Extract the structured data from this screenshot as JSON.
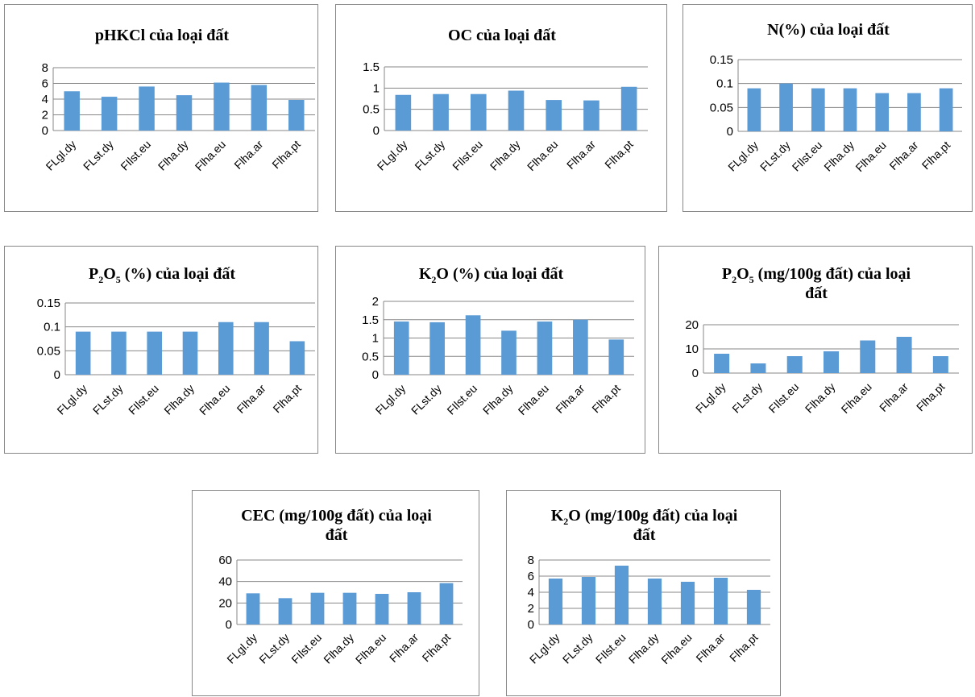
{
  "colors": {
    "bar": "#5b9bd5",
    "grid": "#878787"
  },
  "chart_data": [
    {
      "type": "bar",
      "title_parts": [
        {
          "t": "pHKCl của loại đất"
        }
      ],
      "categories": [
        "FLgl.dy",
        "FLst.dy",
        "FIlst.eu",
        "Flha.dy",
        "Flha.eu",
        "Flha.ar",
        "Flha.pt"
      ],
      "values": [
        5.0,
        4.3,
        5.6,
        4.5,
        6.1,
        5.8,
        3.9
      ],
      "yticks": [
        "0",
        "2",
        "4",
        "6",
        "8"
      ],
      "ylim": [
        0,
        8
      ],
      "grid": true,
      "legend": "none"
    },
    {
      "type": "bar",
      "title_parts": [
        {
          "t": "OC của loại đất"
        }
      ],
      "categories": [
        "FLgl.dy",
        "FLst.dy",
        "FIlst.eu",
        "Flha.dy",
        "Flha.eu",
        "Flha.ar",
        "Flha.pt"
      ],
      "values": [
        0.84,
        0.86,
        0.86,
        0.94,
        0.72,
        0.71,
        1.03
      ],
      "yticks": [
        "0",
        "0.5",
        "1",
        "1.5"
      ],
      "ylim": [
        0,
        1.5
      ],
      "grid": true,
      "legend": "none"
    },
    {
      "type": "bar",
      "title_parts": [
        {
          "t": "N(%) của loại đất"
        }
      ],
      "categories": [
        "FLgl.dy",
        "FLst.dy",
        "FIlst.eu",
        "Flha.dy",
        "Flha.eu",
        "Flha.ar",
        "Flha.pt"
      ],
      "values": [
        0.09,
        0.1,
        0.09,
        0.09,
        0.08,
        0.08,
        0.09
      ],
      "yticks": [
        "0",
        "0.05",
        "0.1",
        "0.15"
      ],
      "ylim": [
        0,
        0.15
      ],
      "grid": true,
      "legend": "none"
    },
    {
      "type": "bar",
      "title_parts": [
        {
          "t": "P"
        },
        {
          "t": "2",
          "sub": true
        },
        {
          "t": "O"
        },
        {
          "t": "5",
          "sub": true
        },
        {
          "t": " (%) của loại đất"
        }
      ],
      "categories": [
        "FLgl.dy",
        "FLst.dy",
        "FIlst.eu",
        "Flha.dy",
        "Flha.eu",
        "Flha.ar",
        "Flha.pt"
      ],
      "values": [
        0.09,
        0.09,
        0.09,
        0.09,
        0.11,
        0.11,
        0.07
      ],
      "yticks": [
        "0",
        "0.05",
        "0.1",
        "0.15"
      ],
      "ylim": [
        0,
        0.15
      ],
      "grid": true,
      "legend": "none"
    },
    {
      "type": "bar",
      "title_parts": [
        {
          "t": "K"
        },
        {
          "t": "2",
          "sub": true
        },
        {
          "t": "O"
        },
        {
          "t": " (%) của loại đất"
        }
      ],
      "categories": [
        "FLgl.dy",
        "FLst.dy",
        "FIlst.eu",
        "Flha.dy",
        "Flha.eu",
        "Flha.ar",
        "Flha.pt"
      ],
      "values": [
        1.45,
        1.43,
        1.62,
        1.2,
        1.45,
        1.5,
        0.96
      ],
      "yticks": [
        "0",
        "0.5",
        "1",
        "1.5",
        "2"
      ],
      "ylim": [
        0,
        2
      ],
      "grid": true,
      "legend": "none"
    },
    {
      "type": "bar",
      "title_parts": [
        {
          "t": "P"
        },
        {
          "t": "2",
          "sub": true
        },
        {
          "t": "O"
        },
        {
          "t": "5",
          "sub": true
        },
        {
          "t": " (mg/100g đất) của loại"
        }
      ],
      "title_line2": "đất",
      "categories": [
        "FLgl.dy",
        "FLst.dy",
        "FIlst.eu",
        "Flha.dy",
        "Flha.eu",
        "Flha.ar",
        "Flha.pt"
      ],
      "values": [
        8,
        4,
        7,
        9,
        13.5,
        15,
        7
      ],
      "yticks": [
        "0",
        "10",
        "20"
      ],
      "ylim": [
        0,
        20
      ],
      "grid": true,
      "legend": "none"
    },
    {
      "type": "bar",
      "title_parts": [
        {
          "t": "CEC (mg/100g đất) của loại"
        }
      ],
      "title_line2": "đất",
      "categories": [
        "FLgl.dy",
        "FLst.dy",
        "FIlst.eu",
        "Flha.dy",
        "Flha.eu",
        "Flha.ar",
        "Flha.pt"
      ],
      "values": [
        29,
        24.5,
        29.5,
        29.5,
        28.5,
        30,
        38.5
      ],
      "yticks": [
        "0",
        "20",
        "40",
        "60"
      ],
      "ylim": [
        0,
        60
      ],
      "grid": true,
      "legend": "none"
    },
    {
      "type": "bar",
      "title_parts": [
        {
          "t": "K"
        },
        {
          "t": "2",
          "sub": true
        },
        {
          "t": "O"
        },
        {
          "t": " (mg/100g đất) của loại"
        }
      ],
      "title_line2": "đất",
      "categories": [
        "FLgl.dy",
        "FLst.dy",
        "FIlst.eu",
        "Flha.dy",
        "Flha.eu",
        "Flha.ar",
        "Flha.pt"
      ],
      "values": [
        5.7,
        5.9,
        7.3,
        5.7,
        5.3,
        5.8,
        4.3
      ],
      "yticks": [
        "0",
        "2",
        "4",
        "6",
        "8"
      ],
      "ylim": [
        0,
        8
      ],
      "grid": true,
      "legend": "none"
    }
  ]
}
